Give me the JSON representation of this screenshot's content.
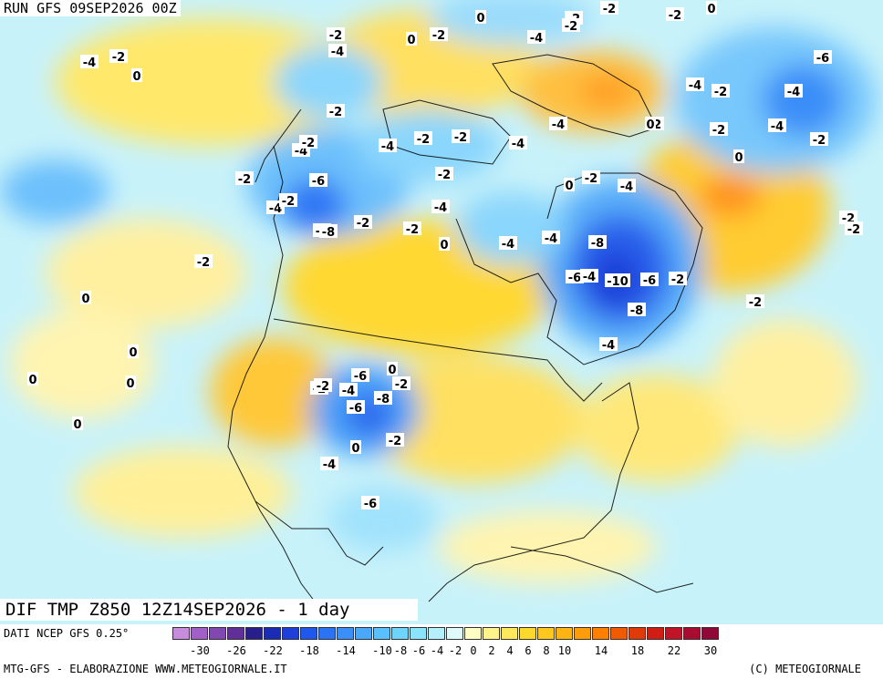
{
  "run_label": "RUN GFS 09SEP2026 00Z",
  "title": "DIF TMP Z850 12Z14SEP2026 - 1 day",
  "legend": {
    "source_label": "DATI NCEP GFS 0.25°",
    "colors": [
      "#c88cdc",
      "#a060c8",
      "#8048b0",
      "#603098",
      "#281e8c",
      "#1a2cb4",
      "#1e40d8",
      "#2158ec",
      "#2a74f4",
      "#3a90f8",
      "#4aa8fa",
      "#5ac0fc",
      "#6ed4fc",
      "#8ae4fc",
      "#b4f0fc",
      "#e0fafc",
      "#fffcc4",
      "#fff48c",
      "#ffe85a",
      "#ffd82c",
      "#ffc81e",
      "#ffb414",
      "#ff9c0a",
      "#ff8000",
      "#f05a00",
      "#e03a08",
      "#d01e14",
      "#c01428",
      "#a80c30",
      "#900838"
    ],
    "tick_labels": [
      "-30",
      "-26",
      "-22",
      "-18",
      "-14",
      "-10",
      "-8",
      "-6",
      "-4",
      "-2",
      "0",
      "2",
      "4",
      "6",
      "8",
      "10",
      "14",
      "18",
      "22",
      "30"
    ]
  },
  "footer_left": "MTG-GFS - ELABORAZIONE WWW.METEOGIORNALE.IT",
  "footer_right": "(C) METEOGIORNALE",
  "map_labels": [
    "-4",
    "-2",
    "0",
    "-2",
    "-4",
    "-2",
    "0",
    "0",
    "-2",
    "-2",
    "-4",
    "-2",
    "-2",
    "0",
    "-6",
    "-4",
    "-2",
    "-4",
    "-2",
    "-4",
    "-2",
    "0",
    "-2",
    "-4",
    "-2",
    "-4",
    "-2",
    "-2",
    "-4",
    "-4",
    "-2",
    "0",
    "-2",
    "-4",
    "-2",
    "-2",
    "-4",
    "-6",
    "-2",
    "-4",
    "-2",
    "-6",
    "-8",
    "-2",
    "-2",
    "0",
    "-4",
    "-2",
    "0",
    "-8",
    "-10",
    "-6",
    "-2",
    "-4",
    "-8",
    "-4",
    "-2",
    "-6",
    "-4",
    "-8",
    "-2",
    "-6",
    "-4",
    "0",
    "-2",
    "-2",
    "0",
    "-2",
    "-6",
    "-6",
    "-4",
    "-2",
    "0",
    "0",
    "0",
    "0",
    "0"
  ],
  "map_icons": {
    "coastline": "coastline-icon"
  }
}
